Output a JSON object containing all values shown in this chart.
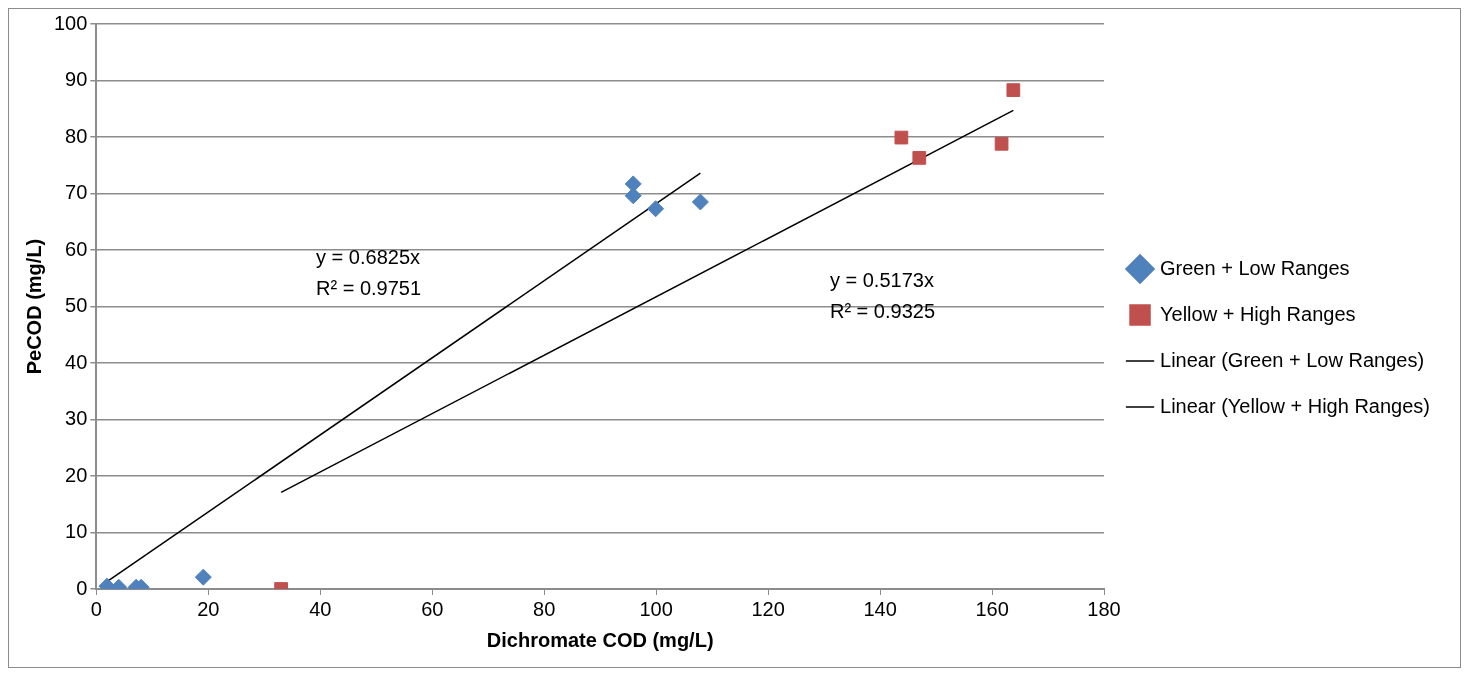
{
  "chart_data": {
    "type": "scatter",
    "xlabel": "Dichromate COD (mg/L)",
    "ylabel": "PeCOD (mg/L)",
    "xlim": [
      0,
      180
    ],
    "xticks": [
      0,
      20,
      40,
      60,
      80,
      100,
      120,
      140,
      160,
      180
    ],
    "ylim": [
      0,
      100
    ],
    "yticks": [
      0,
      10,
      20,
      30,
      40,
      50,
      60,
      70,
      80,
      90,
      100
    ],
    "grid": "y",
    "legend": "right",
    "series": [
      {
        "name": "Green + Low Ranges",
        "color": "#4f81bd",
        "marker": "diamond",
        "x": [
          1.9,
          4,
          7.1,
          8,
          19.1,
          95.9,
          95.9,
          99.9,
          107.9
        ],
        "values": [
          0.5,
          0.3,
          0.3,
          0.3,
          2.1,
          71.7,
          69.6,
          67.3,
          68.5
        ]
      },
      {
        "name": "Yellow + High Ranges",
        "color": "#c0504d",
        "marker": "square",
        "x": [
          33,
          143.8,
          147,
          161.7,
          163.8
        ],
        "values": [
          0,
          79.9,
          76.3,
          78.8,
          88.3
        ]
      },
      {
        "name": "Linear (Green + Low Ranges)",
        "type": "line",
        "color": "#000000",
        "marker": "none",
        "x": [
          1.9,
          107.9
        ],
        "values": [
          1.3,
          73.6
        ]
      },
      {
        "name": "Linear (Yellow + High Ranges)",
        "type": "line",
        "color": "#000000",
        "marker": "none",
        "x": [
          33,
          163.8
        ],
        "values": [
          17.1,
          84.7
        ]
      }
    ],
    "annotations": [
      "y = 0.6825x",
      "R² = 0.9751",
      "y = 0.5173x",
      "R² = 0.9325"
    ]
  }
}
